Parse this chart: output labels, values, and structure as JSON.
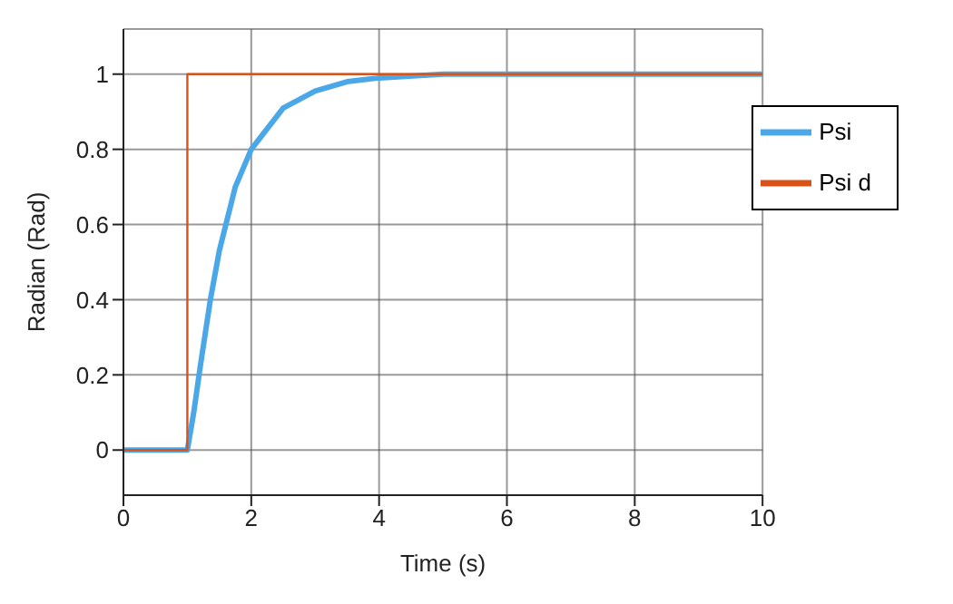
{
  "chart_data": {
    "type": "line",
    "xlabel": "Time (s)",
    "ylabel": "Radian (Rad)",
    "xlim": [
      0,
      10
    ],
    "xticks": [
      0,
      2,
      4,
      6,
      8,
      10
    ],
    "ylim": [
      -0.12,
      1.12
    ],
    "yticks": [
      0,
      0.2,
      0.4,
      0.6,
      0.8,
      1
    ],
    "grid": true,
    "legend": "top right",
    "marker": "none",
    "line_style": "solid",
    "series": [
      {
        "name": "Psi d",
        "type": "step",
        "color": "#d95319",
        "x": [
          0,
          1,
          10
        ],
        "values": [
          0,
          1,
          1
        ]
      },
      {
        "name": "Psi",
        "color": "#4aa8e8",
        "x": [
          0,
          1,
          1.1,
          1.2,
          1.36,
          1.5,
          1.75,
          2,
          2.5,
          3,
          3.5,
          4,
          5,
          10
        ],
        "values": [
          0,
          0,
          0.1,
          0.22,
          0.4,
          0.53,
          0.7,
          0.8,
          0.91,
          0.955,
          0.98,
          0.99,
          1,
          1
        ]
      }
    ]
  }
}
